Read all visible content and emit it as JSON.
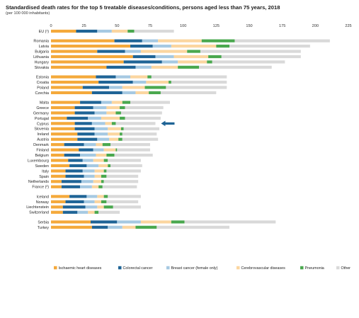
{
  "title": "Standardised death rates for the top 5 treatable diseases/conditions, persons aged less than 75 years, 2018",
  "subtitle": "(per 100 000 inhabitants)",
  "colors": {
    "ischaemic": "#f4a93b",
    "colorectal": "#1f6496",
    "breast": "#a6c9e2",
    "cerebro": "#fbd6a0",
    "pneumonia": "#4aa84e",
    "other": "#d9d9d9",
    "highlight_arrow": "#1f6496"
  },
  "chart_data": {
    "type": "bar",
    "orientation": "horizontal",
    "stacked": true,
    "xlim": [
      0,
      225
    ],
    "xticks": [
      0,
      25,
      50,
      75,
      100,
      125,
      150,
      175,
      200,
      225
    ],
    "grid": false,
    "legend_position": "bottom",
    "highlighted_category": "Cyprus",
    "series": [
      {
        "key": "ischaemic",
        "name": "Ischaemic heart diseases"
      },
      {
        "key": "colorectal",
        "name": "Colorectal cancer"
      },
      {
        "key": "breast",
        "name": "Breast cancer (female only)"
      },
      {
        "key": "cerebro",
        "name": "Cerebrovascular diseases"
      },
      {
        "key": "pneumonia",
        "name": "Pneumonia"
      },
      {
        "key": "other",
        "name": "Other"
      }
    ],
    "groups": [
      [
        {
          "label": "EU (¹)",
          "values": [
            19,
            16,
            11,
            12,
            5,
            30
          ]
        }
      ],
      [
        {
          "label": "Romania",
          "values": [
            48,
            21,
            12,
            33,
            25,
            72
          ]
        },
        {
          "label": "Latvia",
          "values": [
            60,
            17,
            14,
            34,
            10,
            61
          ]
        },
        {
          "label": "Bulgaria",
          "values": [
            35,
            21,
            12,
            35,
            10,
            76
          ]
        },
        {
          "label": "Lithuania",
          "values": [
            62,
            17,
            14,
            26,
            10,
            60
          ]
        },
        {
          "label": "Hungary",
          "values": [
            55,
            29,
            12,
            22,
            4,
            55
          ]
        },
        {
          "label": "Slovakia",
          "values": [
            42,
            22,
            12,
            20,
            16,
            55
          ]
        }
      ],
      [
        {
          "label": "Estonia",
          "values": [
            34,
            15,
            11,
            13,
            3,
            57
          ]
        },
        {
          "label": "Croatia",
          "values": [
            36,
            26,
            10,
            17,
            2,
            42
          ]
        },
        {
          "label": "Poland",
          "values": [
            24,
            20,
            10,
            17,
            16,
            46
          ]
        },
        {
          "label": "Czechia",
          "values": [
            31,
            23,
            10,
            10,
            9,
            42
          ]
        }
      ],
      [
        {
          "label": "Malta",
          "values": [
            22,
            16,
            8,
            8,
            6,
            30
          ]
        },
        {
          "label": "Greece",
          "values": [
            18,
            14,
            10,
            10,
            4,
            29
          ]
        },
        {
          "label": "Germany",
          "values": [
            18,
            15,
            9,
            7,
            4,
            31
          ]
        },
        {
          "label": "Portugal",
          "values": [
            12,
            16,
            10,
            14,
            4,
            27
          ]
        },
        {
          "label": "Cyprus",
          "values": [
            18,
            13,
            10,
            5,
            3,
            30
          ]
        },
        {
          "label": "Slovenia",
          "values": [
            18,
            15,
            10,
            10,
            2,
            27
          ]
        },
        {
          "label": "Ireland",
          "values": [
            20,
            13,
            10,
            9,
            2,
            26
          ]
        },
        {
          "label": "Austria",
          "values": [
            20,
            15,
            9,
            7,
            3,
            27
          ]
        },
        {
          "label": "Denmark",
          "values": [
            10,
            15,
            9,
            5,
            6,
            30
          ]
        },
        {
          "label": "Finland",
          "values": [
            21,
            11,
            8,
            9,
            1,
            25
          ]
        },
        {
          "label": "Belgium",
          "values": [
            10,
            12,
            12,
            8,
            6,
            29
          ]
        },
        {
          "label": "Luxembourg",
          "values": [
            13,
            11,
            8,
            8,
            3,
            25
          ]
        },
        {
          "label": "Sweden",
          "values": [
            14,
            13,
            9,
            7,
            2,
            24
          ]
        },
        {
          "label": "Italy",
          "values": [
            11,
            13,
            9,
            7,
            2,
            26
          ]
        },
        {
          "label": "Spain",
          "values": [
            11,
            14,
            8,
            5,
            4,
            24
          ]
        },
        {
          "label": "Netherlands",
          "values": [
            8,
            15,
            9,
            6,
            2,
            26
          ]
        },
        {
          "label": "France (²)",
          "values": [
            8,
            14,
            9,
            5,
            3,
            26
          ]
        }
      ],
      [
        {
          "label": "Iceland",
          "values": [
            14,
            13,
            8,
            5,
            3,
            25
          ]
        },
        {
          "label": "Norway",
          "values": [
            11,
            14,
            8,
            5,
            4,
            24
          ]
        },
        {
          "label": "Liechtenstein",
          "values": [
            9,
            17,
            9,
            5,
            7,
            21
          ]
        },
        {
          "label": "Switzerland",
          "values": [
            9,
            11,
            8,
            5,
            3,
            16
          ]
        }
      ],
      [
        {
          "label": "Serbia",
          "values": [
            30,
            20,
            18,
            23,
            10,
            69
          ]
        },
        {
          "label": "Turkey",
          "values": [
            31,
            12,
            11,
            10,
            16,
            55
          ]
        }
      ]
    ]
  }
}
